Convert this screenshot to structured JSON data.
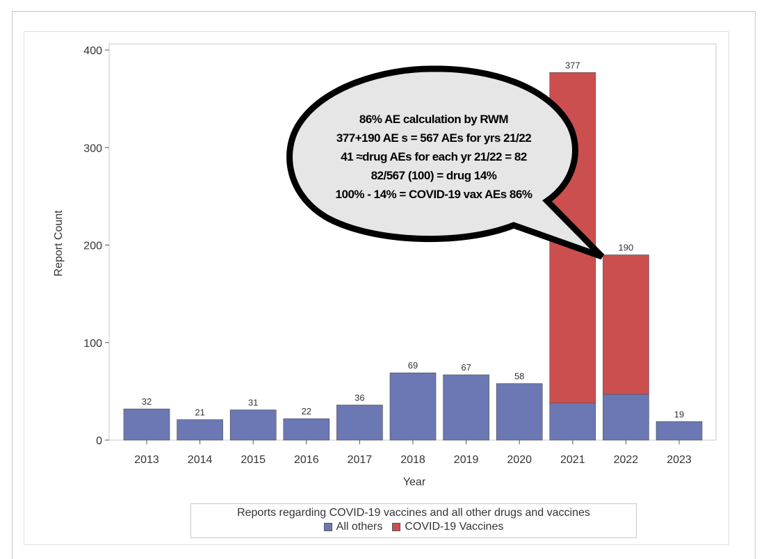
{
  "chart_data": {
    "type": "bar",
    "stacked": true,
    "xlabel": "Year",
    "ylabel": "Report Count",
    "ylim": [
      0,
      400
    ],
    "yticks": [
      0,
      100,
      200,
      300,
      400
    ],
    "categories": [
      "2013",
      "2014",
      "2015",
      "2016",
      "2017",
      "2018",
      "2019",
      "2020",
      "2021",
      "2022",
      "2023"
    ],
    "series": [
      {
        "name": "All others",
        "color": "#6b78b4",
        "values": [
          32,
          21,
          31,
          22,
          36,
          69,
          67,
          58,
          38,
          47,
          19
        ]
      },
      {
        "name": "COVID-19 Vaccines",
        "color": "#cc4f4f",
        "values": [
          0,
          0,
          0,
          0,
          0,
          0,
          0,
          0,
          339,
          143,
          0
        ]
      }
    ],
    "totals": [
      "32",
      "21",
      "31",
      "22",
      "36",
      "69",
      "67",
      "58",
      "377",
      "190",
      "19"
    ],
    "grid": false,
    "legend": {
      "position": "bottom",
      "title": "Reports regarding COVID-19 vaccines and all other drugs and vaccines"
    },
    "annotation": {
      "shape": "speech-bubble",
      "lines": [
        "86% AE calculation by RWM",
        "377+190 AE s = 567 AEs for yrs 21/22",
        "41 ≈drug AEs for each yr 21/22 = 82",
        "82/567 (100) = drug 14%",
        "100% - 14% = COVID-19 vax AEs 86%"
      ]
    }
  }
}
